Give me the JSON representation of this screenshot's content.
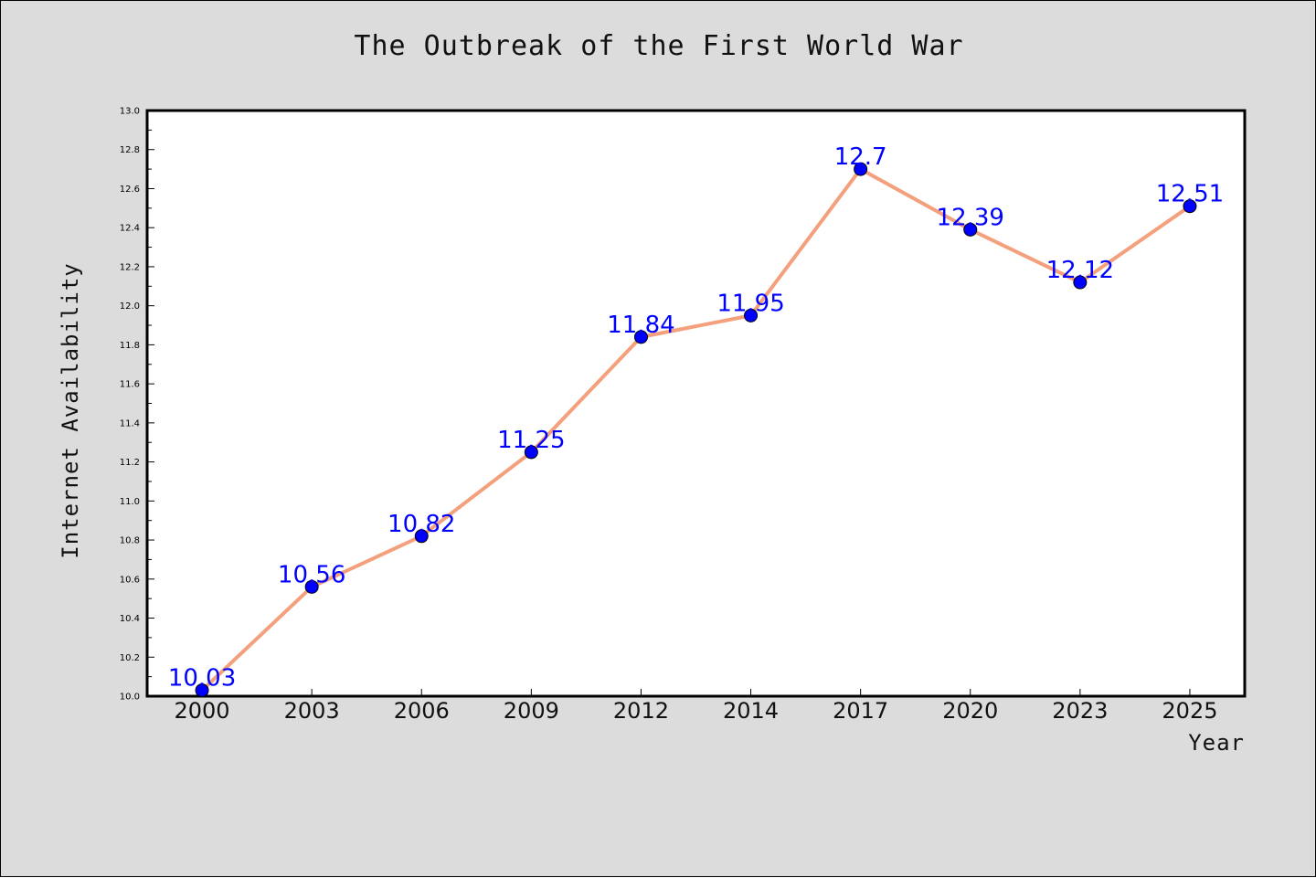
{
  "chart_data": {
    "type": "line",
    "title": "The Outbreak of the First World War",
    "xlabel": "Year",
    "ylabel": "Internet Availability",
    "categories": [
      "2000",
      "2003",
      "2006",
      "2009",
      "2012",
      "2014",
      "2017",
      "2020",
      "2023",
      "2025"
    ],
    "series": [
      {
        "values": [
          10.03,
          10.56,
          10.82,
          11.25,
          11.84,
          11.95,
          12.7,
          12.39,
          12.12,
          12.51
        ],
        "data_labels": [
          "10.03",
          "10.56",
          "10.82",
          "11.25",
          "11.84",
          "11.95",
          "12.7",
          "12.39",
          "12.12",
          "12.51"
        ]
      }
    ],
    "ylim": [
      10.0,
      13.0
    ],
    "yticks": [
      "10.0",
      "10.2",
      "10.4",
      "10.6",
      "10.8",
      "11.0",
      "11.2",
      "11.4",
      "11.6",
      "11.8",
      "12.0",
      "12.2",
      "12.4",
      "12.6",
      "12.8",
      "13.0"
    ],
    "grid": false,
    "legend": "none",
    "colors": {
      "figure_background": "#dcdcdc",
      "plot_background": "#ffffff",
      "line": "#f4a07c",
      "marker": "#0000ff",
      "data_label": "#0000ff",
      "axis": "#000000"
    }
  }
}
